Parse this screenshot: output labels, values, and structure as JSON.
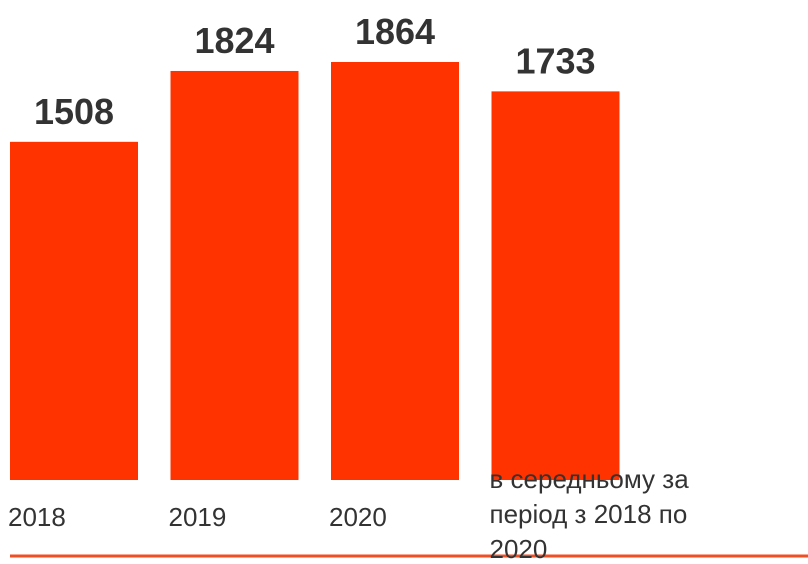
{
  "chart_data": {
    "type": "bar",
    "categories": [
      "2018",
      "2019",
      "2020",
      "в середньому за період з 2018 по 2020"
    ],
    "values": [
      1508,
      1824,
      1864,
      1733
    ],
    "color": "#ff3300",
    "ylim": [
      0,
      2000
    ]
  }
}
